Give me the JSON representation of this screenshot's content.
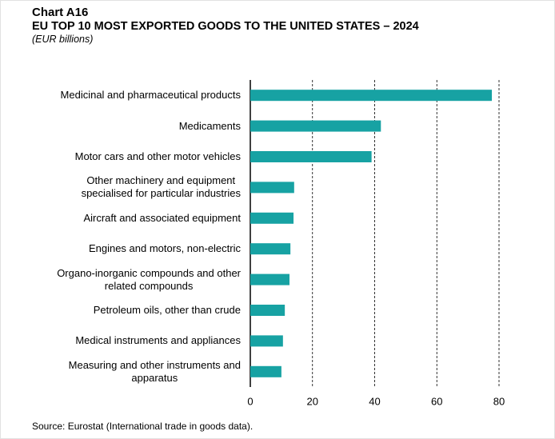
{
  "chart_data": {
    "type": "bar",
    "orientation": "horizontal",
    "title": "Chart A16",
    "subtitle": "EU TOP 10 MOST EXPORTED GOODS TO THE UNITED STATES – 2024",
    "unit_label": "(EUR billions)",
    "source": "Source: Eurostat (International trade in goods data).",
    "categories": [
      "Medicinal and pharmaceutical products",
      "Medicaments",
      "Motor cars and other motor vehicles",
      "Other machinery and equipment\nspecialised for particular industries",
      "Aircraft and associated equipment",
      "Engines and motors, non-electric",
      "Organo-inorganic compounds and other\nrelated compounds",
      "Petroleum oils, other than crude",
      "Medical instruments and appliances",
      "Measuring and other instruments and\napparatus"
    ],
    "values": [
      77.7,
      42,
      39,
      14.1,
      13.9,
      12.9,
      12.6,
      11.1,
      10.5,
      10
    ],
    "color": "#17a2a3",
    "xlim": [
      0,
      80
    ],
    "xticks": [
      0,
      20,
      40,
      60,
      80
    ],
    "grid": true
  }
}
